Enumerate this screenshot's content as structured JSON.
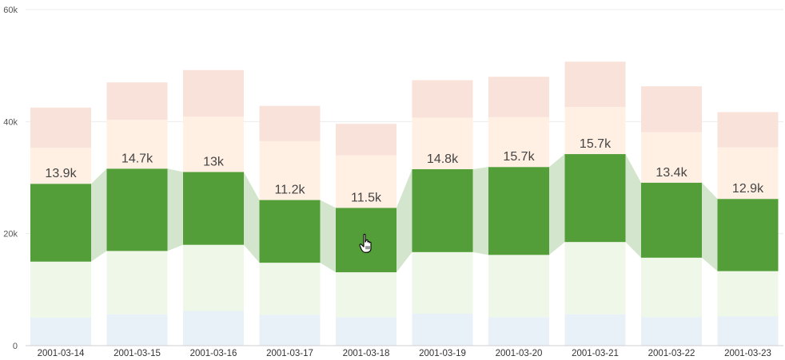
{
  "chart_data": {
    "type": "bar",
    "stacked": true,
    "categories": [
      "2001-03-14",
      "2001-03-15",
      "2001-03-16",
      "2001-03-17",
      "2001-03-18",
      "2001-03-19",
      "2001-03-20",
      "2001-03-21",
      "2001-03-22",
      "2001-03-23"
    ],
    "series": [
      {
        "values": [
          5000,
          5600,
          6200,
          5500,
          5100,
          5700,
          5100,
          5600,
          5100,
          5200
        ],
        "color": "#e8f1f8"
      },
      {
        "values": [
          10000,
          11300,
          11800,
          9300,
          8000,
          11000,
          11100,
          12900,
          10600,
          8100
        ],
        "color": "#eff7e8"
      },
      {
        "values": [
          13900,
          14700,
          13000,
          11200,
          11500,
          14800,
          15700,
          15700,
          13400,
          12900
        ],
        "color": "#549e39",
        "labels": [
          "13.9k",
          "14.7k",
          "13k",
          "11.2k",
          "11.5k",
          "14.8k",
          "15.7k",
          "15.7k",
          "13.4k",
          "12.9k"
        ]
      },
      {
        "values": [
          6400,
          8700,
          9900,
          10500,
          9400,
          9200,
          8900,
          8400,
          9000,
          9200
        ],
        "color": "#fff0e3"
      },
      {
        "values": [
          7200,
          6700,
          8300,
          6300,
          5600,
          6700,
          7200,
          8100,
          8200,
          6300
        ],
        "color": "#f9e2d9"
      }
    ],
    "highlight_series_index": 2,
    "highlight_connector_color": "#d3e5cc",
    "ylim": [
      0,
      60000
    ],
    "y_ticks": [
      0,
      20000,
      40000,
      60000
    ],
    "y_tick_labels": [
      "0",
      "20k",
      "40k",
      "60k"
    ],
    "grid": true,
    "legend": "none"
  },
  "cursor": {
    "icon": "hand-pointer-icon",
    "category": "2001-03-18",
    "value": 18500
  }
}
